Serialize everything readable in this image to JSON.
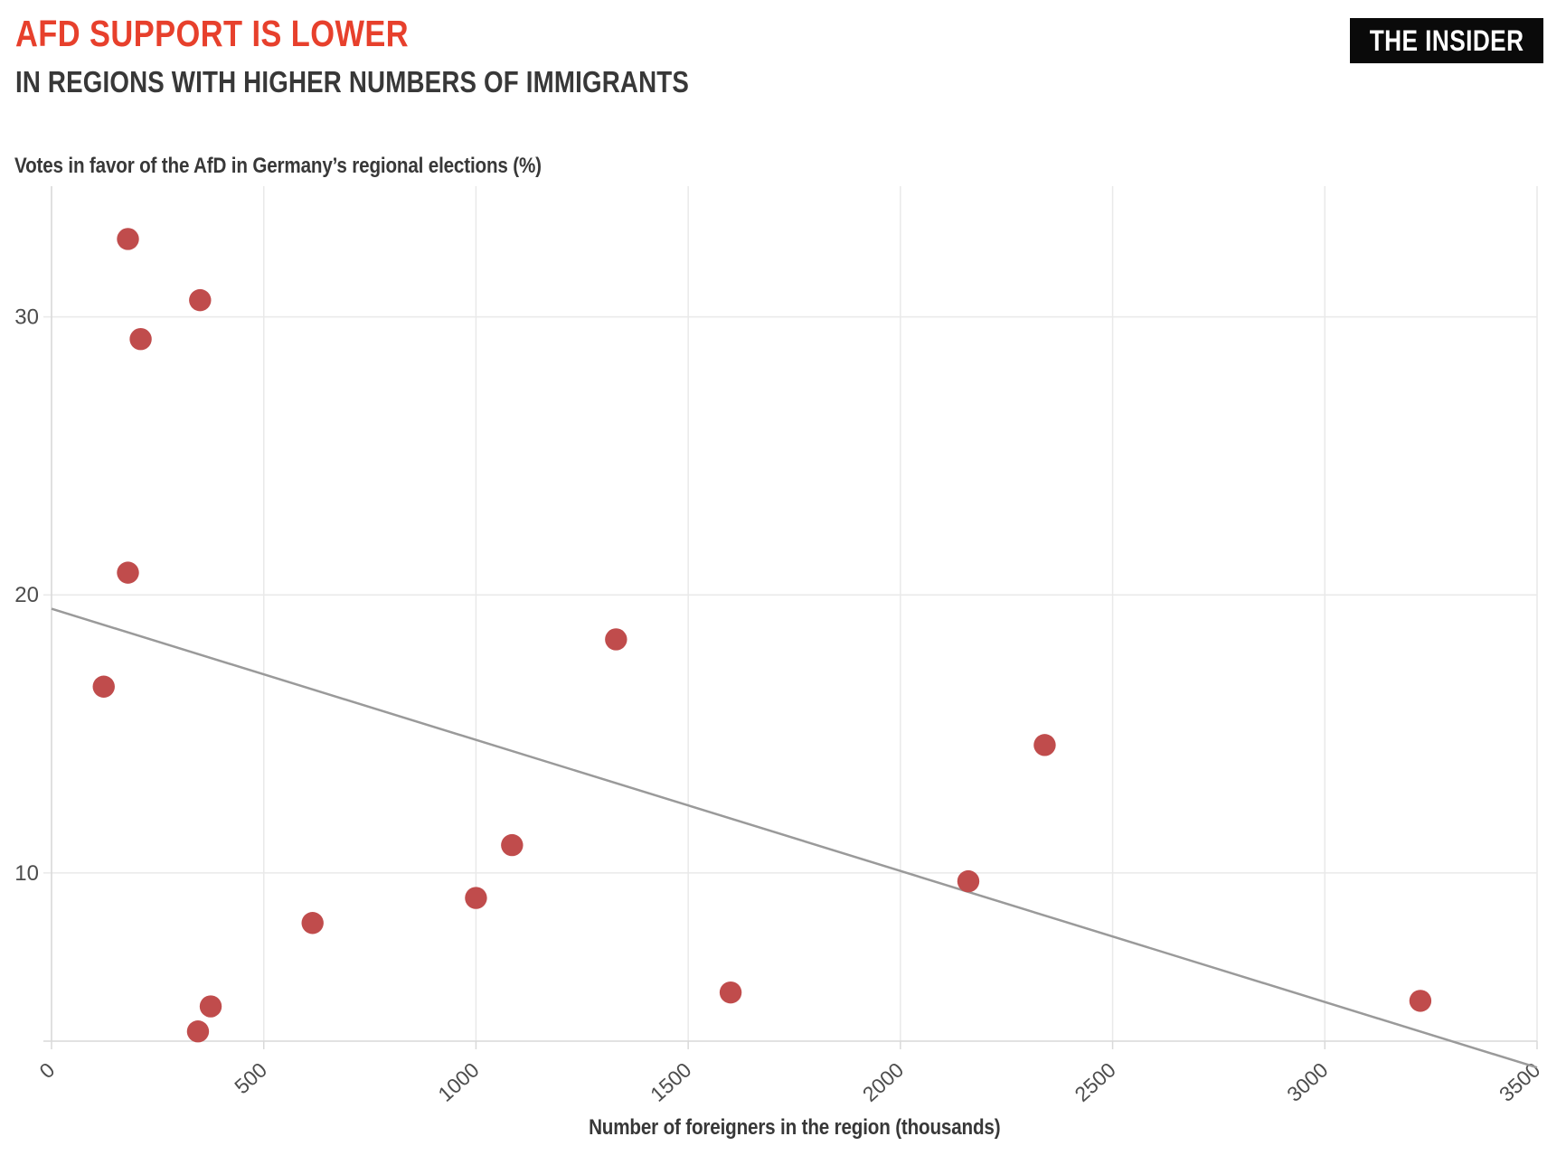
{
  "header": {
    "title": "AFD SUPPORT IS LOWER",
    "subtitle": "IN REGIONS WITH HIGHER NUMBERS OF IMMIGRANTS",
    "logo": "THE INSIDER"
  },
  "chart_data": {
    "type": "scatter",
    "title": "Votes in favor of the AfD in Germany’s regional elections (%)",
    "xlabel": "Number of foreigners in the region (thousands)",
    "ylabel": "Votes in favor of the AfD (%)",
    "xlim": [
      0,
      3500
    ],
    "ylim": [
      3.95,
      34.7
    ],
    "x_ticks": [
      0,
      500,
      1000,
      1500,
      2000,
      2500,
      3000,
      3500
    ],
    "y_ticks": [
      10,
      20,
      30
    ],
    "grid": true,
    "legend_position": "none",
    "points": [
      {
        "x": 180,
        "y": 32.8
      },
      {
        "x": 350,
        "y": 30.6
      },
      {
        "x": 210,
        "y": 29.2
      },
      {
        "x": 180,
        "y": 20.8
      },
      {
        "x": 123,
        "y": 16.7
      },
      {
        "x": 1330,
        "y": 18.4
      },
      {
        "x": 2340,
        "y": 14.6
      },
      {
        "x": 1085,
        "y": 11.0
      },
      {
        "x": 1000,
        "y": 9.1
      },
      {
        "x": 2160,
        "y": 9.7
      },
      {
        "x": 615,
        "y": 8.2
      },
      {
        "x": 375,
        "y": 5.2
      },
      {
        "x": 345,
        "y": 4.3
      },
      {
        "x": 1600,
        "y": 5.7
      },
      {
        "x": 3225,
        "y": 5.4
      }
    ],
    "trend_line": {
      "x1": 0,
      "y1": 19.5,
      "x2": 3500,
      "y2": 3.0
    },
    "colors": {
      "point": "#c04c4c",
      "trend": "#9a9a9a",
      "grid": "#e9e9e9",
      "axis": "#d9d9d9",
      "tick_text": "#4d4d4d",
      "title_accent": "#e7402c",
      "text_dark": "#383838",
      "logo_bg": "#0a0a0a",
      "logo_text": "#ffffff"
    }
  }
}
